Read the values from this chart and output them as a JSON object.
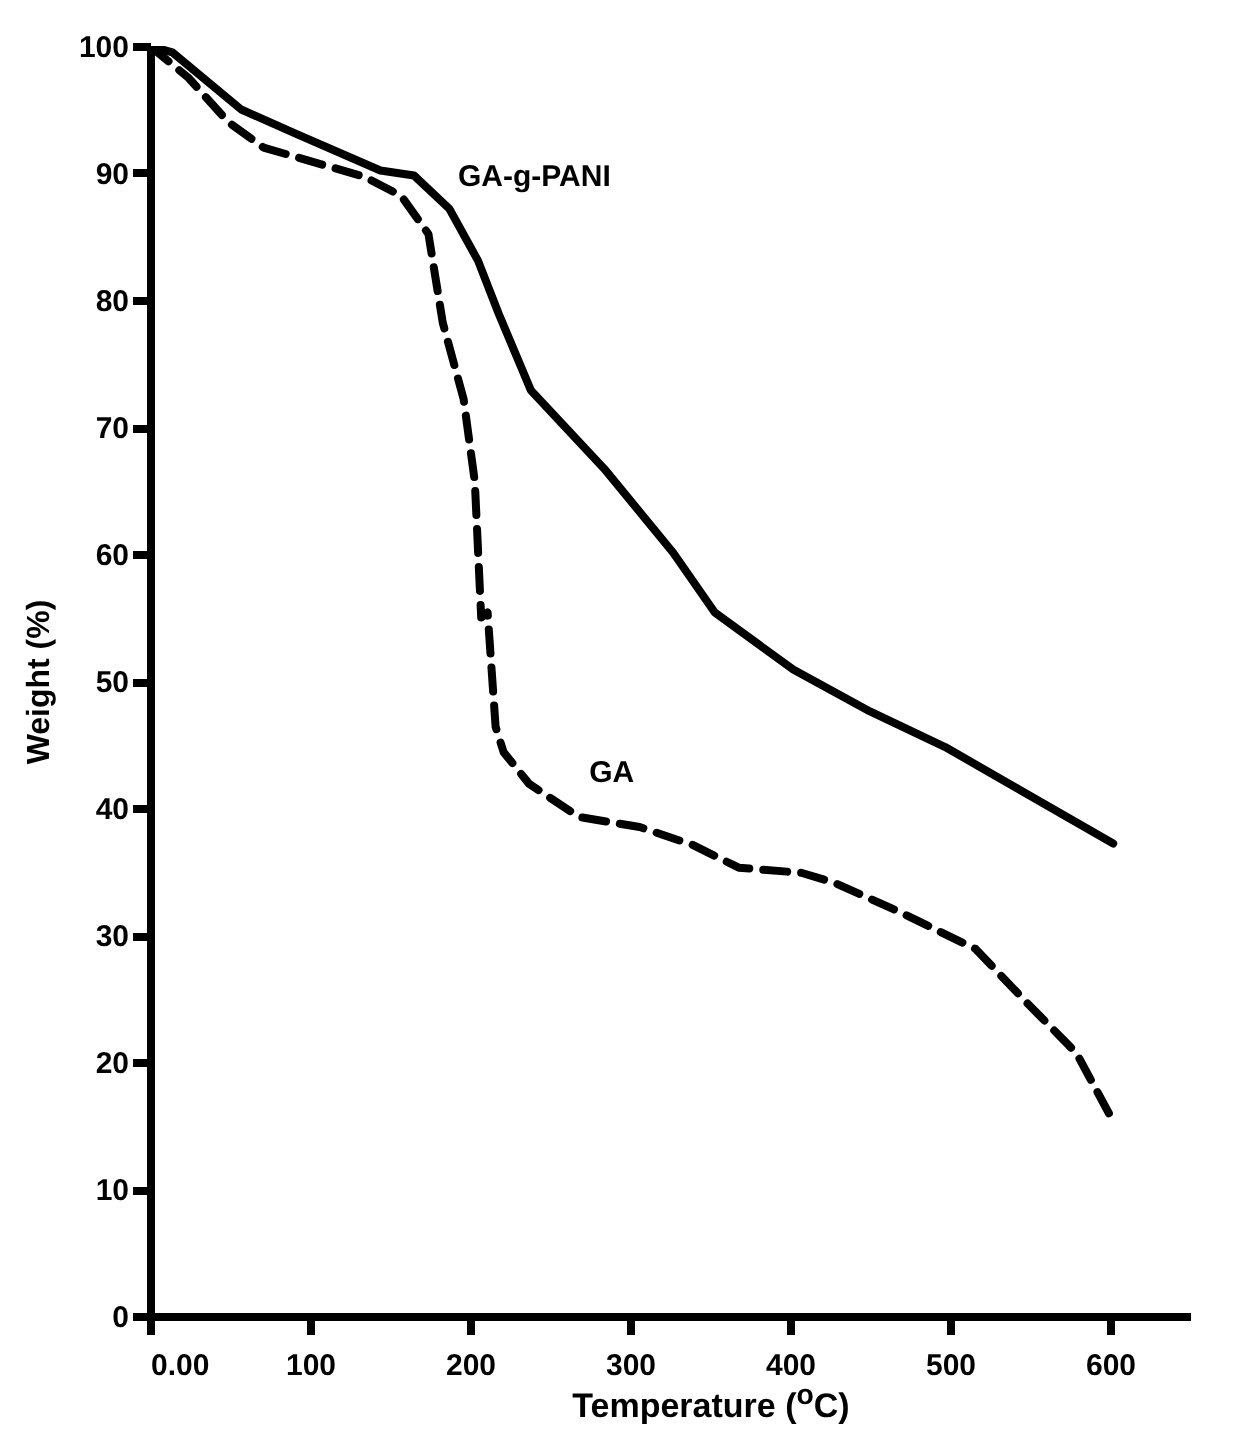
{
  "chart_data": {
    "type": "line",
    "xlabel": "Temperature ($^{o}$C)",
    "ylabel": "Weight (%)",
    "xlim": [
      0,
      650
    ],
    "ylim": [
      0,
      100
    ],
    "xticks": [
      {
        "value": 0,
        "label": "0.00"
      },
      100,
      200,
      300,
      400,
      500,
      600
    ],
    "yticks": [
      0,
      10,
      20,
      30,
      40,
      50,
      60,
      70,
      80,
      90,
      100
    ],
    "grid": false,
    "legend": false,
    "marker": "none",
    "series": [
      {
        "name": "GA-g-PANI",
        "color": "#000000",
        "line_style": "solid",
        "x": [
          0,
          14,
          57,
          91,
          144,
          165,
          187,
          205,
          218,
          238,
          284,
          327,
          353,
          402,
          450,
          497,
          544,
          602
        ],
        "values": [
          100,
          99.5,
          95,
          93.1,
          90.2,
          89.8,
          87.2,
          83.1,
          78.9,
          72.9,
          66.7,
          60.1,
          55.4,
          50.9,
          47.6,
          44.8,
          41.4,
          37.2
        ]
      },
      {
        "name": "GA",
        "color": "#000000",
        "line_style": "dashed",
        "x": [
          0,
          24,
          49,
          71,
          134,
          157,
          174,
          183,
          196,
          203,
          207,
          211,
          216,
          221,
          237,
          268,
          306,
          339,
          368,
          407,
          428,
          467,
          516,
          547,
          579,
          603
        ],
        "values": [
          100,
          97.5,
          94,
          92,
          89.7,
          88.2,
          85.2,
          78.2,
          72.2,
          65.7,
          55,
          55.4,
          46.4,
          44.4,
          41.9,
          39.3,
          38.5,
          37.1,
          35.3,
          34.9,
          34.1,
          31.9,
          28.9,
          24.8,
          20.7,
          15.1
        ]
      }
    ]
  }
}
